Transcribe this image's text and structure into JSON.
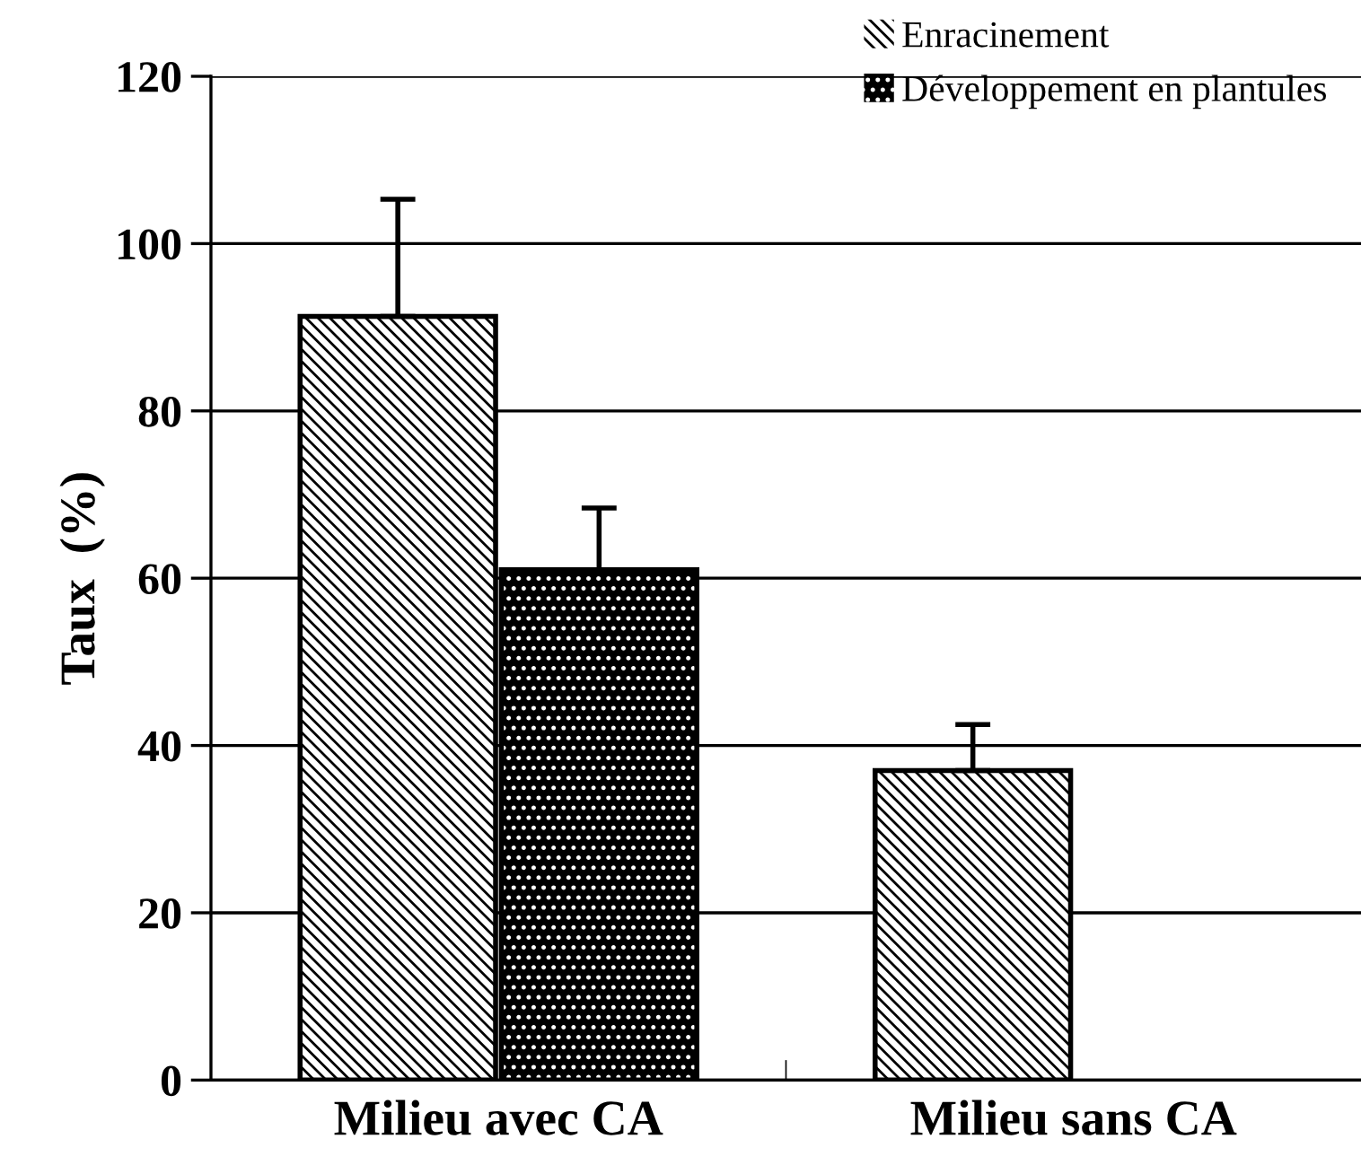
{
  "chart_data": {
    "type": "bar",
    "ylabel": "Taux  (%)",
    "categories": [
      "Milieu avec CA",
      "Milieu sans CA"
    ],
    "series": [
      {
        "name": "Enracinement",
        "color": "#ffffff",
        "values": [
          91.3,
          37
        ],
        "errors": [
          14,
          5.5
        ]
      },
      {
        "name": "Développement en plantules",
        "color": "#000000",
        "values": [
          61,
          null
        ],
        "errors": [
          7.4,
          null
        ]
      }
    ],
    "ylim": [
      0,
      120
    ],
    "yticks": [
      0,
      20,
      40,
      60,
      80,
      100,
      120
    ],
    "grid": "y",
    "legend": "top right"
  }
}
